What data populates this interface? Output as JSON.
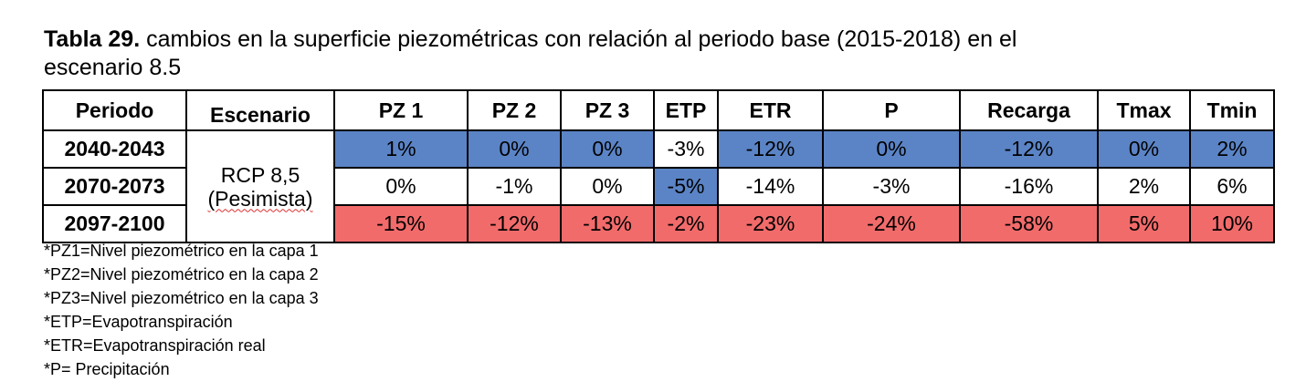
{
  "caption": {
    "bold": "Tabla 29.",
    "rest": " cambios en la superficie piezométricas con relación al periodo base (2015-2018) en el escenario 8.5"
  },
  "table": {
    "headers": [
      "Periodo",
      "Escenario",
      "PZ 1",
      "PZ 2",
      "PZ 3",
      "ETP",
      "ETR",
      "P",
      "Recarga",
      "Tmax",
      "Tmin"
    ],
    "scenario_line1": "RCP 8,5",
    "scenario_line2": "(Pesimista)",
    "rows": [
      {
        "period": "2040-2043",
        "values": [
          "1%",
          "0%",
          "0%",
          "-3%",
          "-12%",
          "0%",
          "-12%",
          "0%",
          "2%"
        ]
      },
      {
        "period": "2070-2073",
        "values": [
          "0%",
          "-1%",
          "0%",
          "-5%",
          "-14%",
          "-3%",
          "-16%",
          "2%",
          "6%"
        ]
      },
      {
        "period": "2097-2100",
        "values": [
          "-15%",
          "-12%",
          "-13%",
          "-2%",
          "-23%",
          "-24%",
          "-58%",
          "5%",
          "10%"
        ]
      }
    ]
  },
  "colors": {
    "blue": "#5b84c6",
    "red": "#f26b6b",
    "white": "#ffffff"
  },
  "notes": [
    "*PZ1=Nivel piezométrico en la capa 1",
    "*PZ2=Nivel piezométrico en la capa 2",
    "*PZ3=Nivel piezométrico en la capa 3",
    "*ETP=Evapotranspiración",
    "*ETR=Evapotranspiración real",
    "*P= Precipitación"
  ]
}
